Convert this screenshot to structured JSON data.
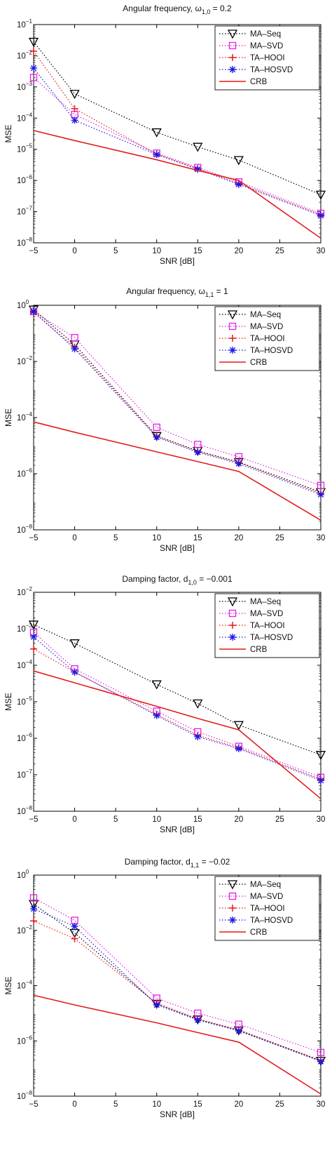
{
  "figure": {
    "legend_placement": "top-right",
    "grid": false
  },
  "chart_data": [
    {
      "type": "line",
      "title": {
        "main": "Angular frequency,   ω",
        "sub": "1,0",
        "tail": " = 0.2"
      },
      "xlabel": "SNR [dB]",
      "ylabel": "MSE",
      "x": [
        -5,
        0,
        10,
        15,
        20,
        30
      ],
      "xticks": [
        -5,
        0,
        5,
        10,
        15,
        20,
        25,
        30
      ],
      "xlim": [
        -5,
        30
      ],
      "yscale": "log",
      "ylim_exp": [
        -8,
        -1
      ],
      "ytick_exps": [
        -8,
        -7,
        -6,
        -5,
        -4,
        -3,
        -2,
        -1
      ],
      "series": [
        {
          "name": "MA–Seq",
          "color": "#000000",
          "marker": "triangle-down",
          "linestyle": "dotted",
          "values": [
            0.028,
            0.0006,
            3.5e-05,
            1.2e-05,
            4.5e-06,
            3.5e-07
          ]
        },
        {
          "name": "MA–SVD",
          "color": "#e51ee5",
          "marker": "square",
          "linestyle": "dotted",
          "values": [
            0.002,
            0.00013,
            7.5e-06,
            2.6e-06,
            9e-07,
            8.8e-08
          ]
        },
        {
          "name": "TA–HOOI",
          "color": "#e6191e",
          "marker": "plus",
          "linestyle": "dotted",
          "values": [
            0.014,
            0.0002,
            7e-06,
            2.4e-06,
            8e-07,
            8e-08
          ]
        },
        {
          "name": "TA–HOSVD",
          "color": "#1a1ae6",
          "marker": "asterisk",
          "linestyle": "dotted",
          "values": [
            0.004,
            8.5e-05,
            6.8e-06,
            2.3e-06,
            7.5e-07,
            7.5e-08
          ]
        },
        {
          "name": "CRB",
          "color": "#e31c1c",
          "marker": "none",
          "linestyle": "solid",
          "values": [
            4e-05,
            1.9e-05,
            4.6e-06,
            2.1e-06,
            1e-06,
            1.4e-08
          ]
        }
      ]
    },
    {
      "type": "line",
      "title": {
        "main": "Angular frequency,  ω",
        "sub": "1,1",
        "tail": " = 1"
      },
      "xlabel": "SNR [dB]",
      "ylabel": "MSE",
      "x": [
        -5,
        0,
        10,
        15,
        20,
        30
      ],
      "xticks": [
        -5,
        0,
        5,
        10,
        15,
        20,
        25,
        30
      ],
      "xlim": [
        -5,
        30
      ],
      "yscale": "log",
      "ylim_exp": [
        -8,
        0
      ],
      "ytick_exps": [
        -8,
        -6,
        -4,
        -2,
        0
      ],
      "series": [
        {
          "name": "MA–Seq",
          "color": "#000000",
          "marker": "triangle-down",
          "linestyle": "dotted",
          "values": [
            0.7,
            0.04,
            2.2e-05,
            6.5e-06,
            2.6e-06,
            2.2e-07
          ]
        },
        {
          "name": "MA–SVD",
          "color": "#e51ee5",
          "marker": "square",
          "linestyle": "dotted",
          "values": [
            0.6,
            0.07,
            4.5e-05,
            1.1e-05,
            4e-06,
            3.8e-07
          ]
        },
        {
          "name": "TA–HOOI",
          "color": "#e6191e",
          "marker": "plus",
          "linestyle": "dotted",
          "values": [
            0.55,
            0.032,
            2.2e-05,
            6.2e-06,
            2.5e-06,
            2e-07
          ]
        },
        {
          "name": "TA–HOSVD",
          "color": "#1a1ae6",
          "marker": "asterisk",
          "linestyle": "dotted",
          "values": [
            0.6,
            0.028,
            2e-05,
            5.8e-06,
            2.3e-06,
            1.8e-07
          ]
        },
        {
          "name": "CRB",
          "color": "#e31c1c",
          "marker": "none",
          "linestyle": "solid",
          "values": [
            7e-05,
            3e-05,
            6e-06,
            2.7e-06,
            1.2e-06,
            2.2e-08
          ]
        }
      ]
    },
    {
      "type": "line",
      "title": {
        "main": "Damping factor,  d",
        "sub": "1,0",
        "tail": " = −0.001"
      },
      "xlabel": "SNR [dB]",
      "ylabel": "MSE",
      "x": [
        -5,
        0,
        10,
        15,
        20,
        30
      ],
      "xticks": [
        -5,
        0,
        5,
        10,
        15,
        20,
        25,
        30
      ],
      "xlim": [
        -5,
        30
      ],
      "yscale": "log",
      "ylim_exp": [
        -8,
        -2
      ],
      "ytick_exps": [
        -8,
        -7,
        -6,
        -5,
        -4,
        -3,
        -2
      ],
      "series": [
        {
          "name": "MA–Seq",
          "color": "#000000",
          "marker": "triangle-down",
          "linestyle": "dotted",
          "values": [
            0.0013,
            0.0004,
            3e-05,
            9e-06,
            2.3e-06,
            3.5e-07
          ]
        },
        {
          "name": "MA–SVD",
          "color": "#e51ee5",
          "marker": "square",
          "linestyle": "dotted",
          "values": [
            0.0008,
            8e-05,
            5.5e-06,
            1.5e-06,
            6e-07,
            8.5e-08
          ]
        },
        {
          "name": "TA–HOOI",
          "color": "#e6191e",
          "marker": "plus",
          "linestyle": "dotted",
          "values": [
            0.00028,
            6.5e-05,
            4.5e-06,
            1.2e-06,
            5.5e-07,
            7.5e-08
          ]
        },
        {
          "name": "TA–HOSVD",
          "color": "#1a1ae6",
          "marker": "asterisk",
          "linestyle": "dotted",
          "values": [
            0.0006,
            6.5e-05,
            4.2e-06,
            1.1e-06,
            5.2e-07,
            7e-08
          ]
        },
        {
          "name": "CRB",
          "color": "#e31c1c",
          "marker": "none",
          "linestyle": "solid",
          "values": [
            7e-05,
            3.3e-05,
            7.5e-06,
            3.5e-06,
            1.7e-06,
            2.2e-08
          ]
        }
      ]
    },
    {
      "type": "line",
      "title": {
        "main": "Damping factor, d",
        "sub": "1,1",
        "tail": " = −0.02"
      },
      "xlabel": "SNR [dB]",
      "ylabel": "MSE",
      "x": [
        -5,
        0,
        10,
        15,
        20,
        30
      ],
      "xticks": [
        -5,
        0,
        5,
        10,
        15,
        20,
        25,
        30
      ],
      "xlim": [
        -5,
        30
      ],
      "yscale": "log",
      "ylim_exp": [
        -8,
        0
      ],
      "ytick_exps": [
        -8,
        -6,
        -4,
        -2,
        0
      ],
      "series": [
        {
          "name": "MA–Seq",
          "color": "#000000",
          "marker": "triangle-down",
          "linestyle": "dotted",
          "values": [
            0.09,
            0.008,
            2.2e-05,
            6e-06,
            2.4e-06,
            1.9e-07
          ]
        },
        {
          "name": "MA–SVD",
          "color": "#e51ee5",
          "marker": "square",
          "linestyle": "dotted",
          "values": [
            0.15,
            0.023,
            3.5e-05,
            1e-05,
            4e-06,
            3.8e-07
          ]
        },
        {
          "name": "TA–HOOI",
          "color": "#e6191e",
          "marker": "plus",
          "linestyle": "dotted",
          "values": [
            0.022,
            0.005,
            2.3e-05,
            6.3e-06,
            2.5e-06,
            2e-07
          ]
        },
        {
          "name": "TA–HOSVD",
          "color": "#1a1ae6",
          "marker": "asterisk",
          "linestyle": "dotted",
          "values": [
            0.06,
            0.014,
            2e-05,
            5.7e-06,
            2.3e-06,
            1.8e-07
          ]
        },
        {
          "name": "CRB",
          "color": "#e31c1c",
          "marker": "none",
          "linestyle": "solid",
          "values": [
            4.5e-05,
            2e-05,
            4.5e-06,
            2e-06,
            9e-07,
            1.2e-08
          ]
        }
      ]
    }
  ]
}
